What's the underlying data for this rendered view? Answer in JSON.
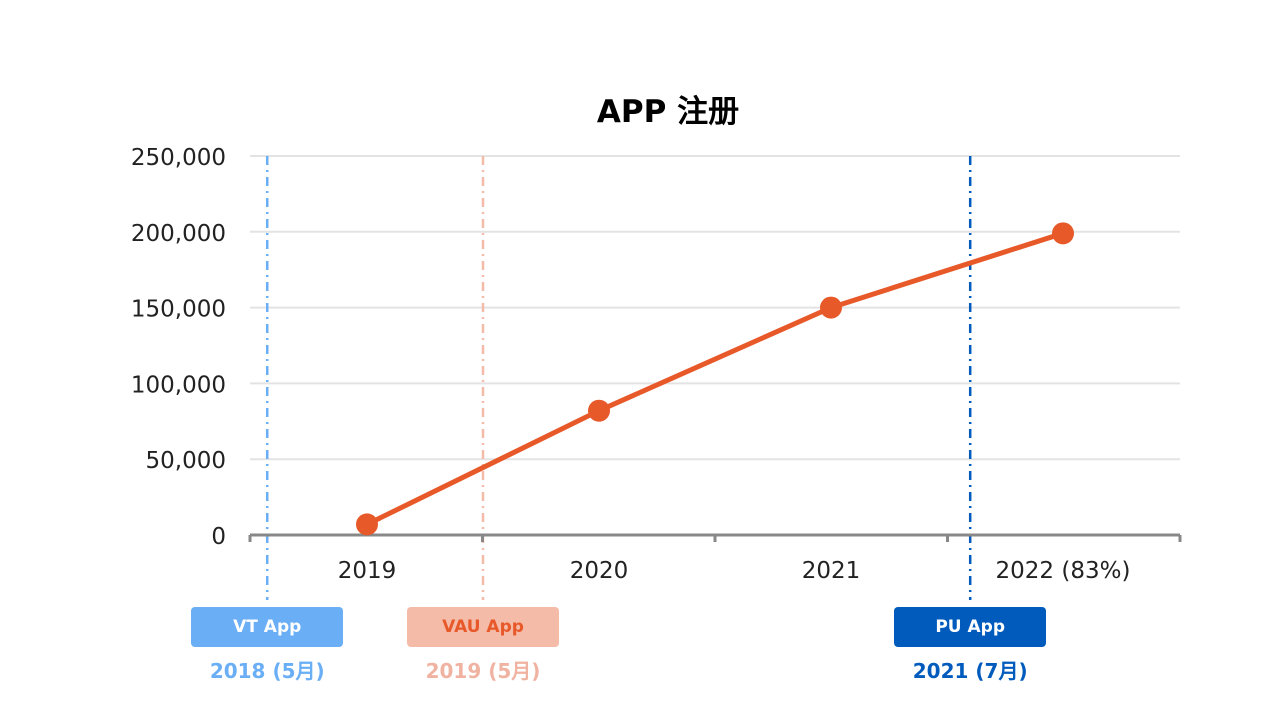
{
  "chart_data": {
    "type": "line",
    "title": "APP 注册",
    "categories": [
      "2019",
      "2020",
      "2021",
      "2022 (83%)"
    ],
    "series": [
      {
        "values": [
          7000,
          82000,
          150000,
          199000
        ],
        "color": "#e8592a"
      }
    ],
    "ylim": [
      0,
      250000
    ],
    "y_ticks": [
      "0",
      "50,000",
      "100,000",
      "150,000",
      "200,000",
      "250,000"
    ],
    "y_tick_values": [
      0,
      50000,
      100000,
      150000,
      200000,
      250000
    ],
    "grid": true,
    "milestones": [
      {
        "label": "VT App",
        "date": "2018 (5月)",
        "x_position": -0.43,
        "color": "#6aaef5",
        "text_color": "#ffffff",
        "date_color": "#6aaef5"
      },
      {
        "label": "VAU App",
        "date": "2019 (5月)",
        "x_position": 0.5,
        "color": "#f5bba9",
        "text_color": "#e8592a",
        "date_color": "#f0b3a1"
      },
      {
        "label": "PU App",
        "date": "2021 (7月)",
        "x_position": 2.6,
        "color": "#005bbd",
        "text_color": "#ffffff",
        "date_color": "#005bbd"
      }
    ]
  }
}
